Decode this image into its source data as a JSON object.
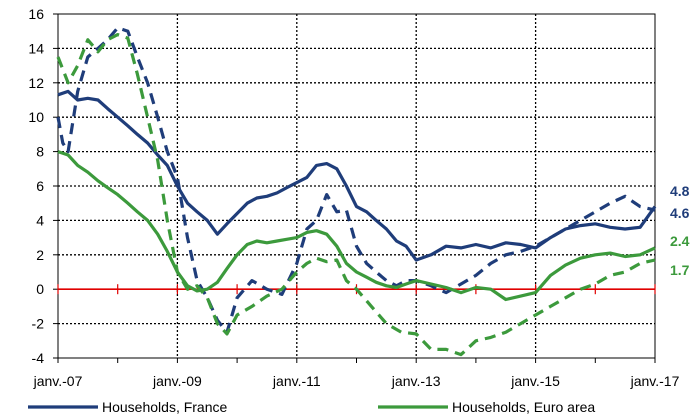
{
  "chart_data": {
    "type": "line",
    "title_partial": "(%)",
    "ylim": [
      -4,
      16
    ],
    "y_ticks": [
      "-4",
      "-2",
      "0",
      "2",
      "4",
      "6",
      "8",
      "10",
      "12",
      "14",
      "16"
    ],
    "x_ticks": [
      "janv.-07",
      "janv.-09",
      "janv.-11",
      "janv.-13",
      "janv.-15",
      "janv.-17"
    ],
    "xlim": [
      2007.0,
      2017.0
    ],
    "grid": true,
    "colors": {
      "france": "#1f3d7a",
      "euro": "#3c9a3c",
      "zero_line": "#e00000"
    },
    "series": [
      {
        "name": "Households, France",
        "style": "solid",
        "color": "#1f3d7a",
        "x": [
          2007.0,
          2007.17,
          2007.33,
          2007.5,
          2007.67,
          2007.83,
          2008.0,
          2008.17,
          2008.33,
          2008.5,
          2008.67,
          2008.83,
          2009.0,
          2009.17,
          2009.33,
          2009.5,
          2009.67,
          2009.83,
          2010.0,
          2010.17,
          2010.33,
          2010.5,
          2010.67,
          2010.83,
          2011.0,
          2011.17,
          2011.33,
          2011.5,
          2011.67,
          2011.83,
          2012.0,
          2012.17,
          2012.33,
          2012.5,
          2012.67,
          2012.83,
          2013.0,
          2013.25,
          2013.5,
          2013.75,
          2014.0,
          2014.25,
          2014.5,
          2014.75,
          2015.0,
          2015.25,
          2015.5,
          2015.75,
          2016.0,
          2016.25,
          2016.5,
          2016.75,
          2017.0
        ],
        "y": [
          11.3,
          11.5,
          11.0,
          11.1,
          11.0,
          10.5,
          10.0,
          9.5,
          9.0,
          8.5,
          7.8,
          7.2,
          6.0,
          5.0,
          4.5,
          4.0,
          3.2,
          3.8,
          4.4,
          5.0,
          5.3,
          5.4,
          5.6,
          5.9,
          6.2,
          6.5,
          7.2,
          7.3,
          7.0,
          6.0,
          4.8,
          4.5,
          4.0,
          3.5,
          2.8,
          2.5,
          1.7,
          2.0,
          2.5,
          2.4,
          2.6,
          2.4,
          2.7,
          2.6,
          2.4,
          3.0,
          3.5,
          3.7,
          3.8,
          3.6,
          3.5,
          3.6,
          4.8
        ]
      },
      {
        "name": "Households, France",
        "style": "dashed",
        "color": "#1f3d7a",
        "x": [
          2007.0,
          2007.08,
          2007.17,
          2007.33,
          2007.5,
          2007.67,
          2007.83,
          2008.0,
          2008.17,
          2008.33,
          2008.5,
          2008.67,
          2008.83,
          2009.0,
          2009.17,
          2009.33,
          2009.5,
          2009.67,
          2009.83,
          2010.0,
          2010.25,
          2010.5,
          2010.75,
          2011.0,
          2011.17,
          2011.33,
          2011.5,
          2011.67,
          2011.83,
          2012.0,
          2012.17,
          2012.33,
          2012.5,
          2012.67,
          2012.83,
          2013.0,
          2013.25,
          2013.5,
          2013.75,
          2014.0,
          2014.25,
          2014.5,
          2014.75,
          2015.0,
          2015.25,
          2015.5,
          2015.75,
          2016.0,
          2016.25,
          2016.5,
          2016.75,
          2017.0
        ],
        "y": [
          10.0,
          8.5,
          8.0,
          11.5,
          13.5,
          14.0,
          14.5,
          15.2,
          15.0,
          13.5,
          12.0,
          10.0,
          8.0,
          6.5,
          3.0,
          0.5,
          -0.5,
          -1.8,
          -2.5,
          -0.5,
          0.5,
          0.0,
          -0.3,
          1.5,
          3.5,
          4.0,
          5.5,
          4.5,
          4.6,
          2.5,
          1.5,
          1.0,
          0.5,
          0.2,
          0.5,
          0.5,
          0.2,
          -0.2,
          0.3,
          0.8,
          1.5,
          2.0,
          2.2,
          2.5,
          3.0,
          3.5,
          4.0,
          4.5,
          5.0,
          5.4,
          4.8,
          4.6
        ]
      },
      {
        "name": "Households, Euro area",
        "style": "solid",
        "color": "#3c9a3c",
        "x": [
          2007.0,
          2007.17,
          2007.33,
          2007.5,
          2007.67,
          2007.83,
          2008.0,
          2008.17,
          2008.33,
          2008.5,
          2008.67,
          2008.83,
          2009.0,
          2009.17,
          2009.33,
          2009.5,
          2009.67,
          2009.83,
          2010.0,
          2010.17,
          2010.33,
          2010.5,
          2010.67,
          2010.83,
          2011.0,
          2011.17,
          2011.33,
          2011.5,
          2011.67,
          2011.83,
          2012.0,
          2012.17,
          2012.33,
          2012.5,
          2012.67,
          2012.83,
          2013.0,
          2013.25,
          2013.5,
          2013.75,
          2014.0,
          2014.25,
          2014.5,
          2014.75,
          2015.0,
          2015.25,
          2015.5,
          2015.75,
          2016.0,
          2016.25,
          2016.5,
          2016.75,
          2017.0
        ],
        "y": [
          8.0,
          7.8,
          7.2,
          6.8,
          6.3,
          5.9,
          5.5,
          5.0,
          4.5,
          4.0,
          3.2,
          2.2,
          1.0,
          0.2,
          -0.1,
          0.0,
          0.4,
          1.2,
          2.0,
          2.6,
          2.8,
          2.7,
          2.8,
          2.9,
          3.0,
          3.3,
          3.4,
          3.2,
          2.5,
          1.5,
          1.0,
          0.7,
          0.4,
          0.2,
          0.1,
          0.3,
          0.5,
          0.3,
          0.1,
          -0.2,
          0.1,
          0.0,
          -0.6,
          -0.4,
          -0.2,
          0.8,
          1.4,
          1.8,
          2.0,
          2.1,
          1.9,
          2.0,
          2.4
        ]
      },
      {
        "name": "Households, Euro area",
        "style": "dashed",
        "color": "#3c9a3c",
        "x": [
          2007.0,
          2007.17,
          2007.33,
          2007.5,
          2007.67,
          2007.83,
          2008.0,
          2008.17,
          2008.33,
          2008.5,
          2008.67,
          2008.83,
          2009.0,
          2009.17,
          2009.33,
          2009.5,
          2009.67,
          2009.83,
          2010.0,
          2010.25,
          2010.5,
          2010.75,
          2011.0,
          2011.17,
          2011.33,
          2011.5,
          2011.67,
          2011.83,
          2012.0,
          2012.25,
          2012.5,
          2012.75,
          2013.0,
          2013.25,
          2013.5,
          2013.75,
          2014.0,
          2014.25,
          2014.5,
          2014.75,
          2015.0,
          2015.25,
          2015.5,
          2015.75,
          2016.0,
          2016.25,
          2016.5,
          2016.75,
          2017.0
        ],
        "y": [
          13.5,
          12.0,
          13.0,
          14.5,
          13.8,
          14.5,
          14.8,
          14.6,
          12.5,
          10.0,
          7.5,
          4.0,
          1.0,
          0.0,
          0.2,
          -0.5,
          -2.0,
          -2.6,
          -1.5,
          -1.0,
          -0.4,
          0.0,
          1.0,
          1.5,
          1.8,
          1.6,
          1.7,
          0.5,
          0.0,
          -1.0,
          -2.0,
          -2.5,
          -2.6,
          -3.5,
          -3.5,
          -3.8,
          -3.0,
          -2.8,
          -2.5,
          -2.0,
          -1.5,
          -1.0,
          -0.5,
          0.0,
          0.3,
          0.8,
          1.0,
          1.5,
          1.7
        ]
      }
    ],
    "end_labels": [
      {
        "text": "4.8",
        "color": "#1f3d7a",
        "value": 4.8
      },
      {
        "text": "4.6",
        "color": "#1f3d7a",
        "value": 4.6
      },
      {
        "text": "2.4",
        "color": "#3c9a3c",
        "value": 2.4
      },
      {
        "text": "1.7",
        "color": "#3c9a3c",
        "value": 1.7
      }
    ],
    "legend": [
      {
        "label": "Households, France",
        "color": "#1f3d7a",
        "style": "solid"
      },
      {
        "label": "Households, Euro area",
        "color": "#3c9a3c",
        "style": "solid"
      }
    ],
    "legend_placement": "bottom"
  }
}
